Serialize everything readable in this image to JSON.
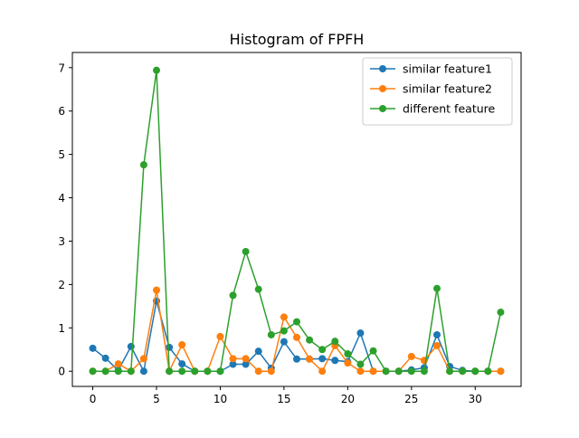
{
  "chart_data": {
    "type": "line",
    "title": "Histogram of FPFH",
    "xlabel": "",
    "ylabel": "",
    "xlim": [
      -1.6,
      33.6
    ],
    "ylim": [
      -0.35,
      7.35
    ],
    "xticks": [
      0,
      5,
      10,
      15,
      20,
      25,
      30
    ],
    "yticks": [
      0,
      1,
      2,
      3,
      4,
      5,
      6,
      7
    ],
    "x": [
      0,
      1,
      2,
      3,
      4,
      5,
      6,
      7,
      8,
      9,
      10,
      11,
      12,
      13,
      14,
      15,
      16,
      17,
      18,
      19,
      20,
      21,
      22,
      23,
      24,
      25,
      26,
      27,
      28,
      29,
      30,
      31,
      32
    ],
    "legend_position": "upper right",
    "grid": false,
    "series": [
      {
        "name": "similar feature1",
        "color": "#1f77b4",
        "values": [
          0.53,
          0.3,
          0.02,
          0.57,
          0.0,
          1.62,
          0.55,
          0.17,
          0.0,
          0.0,
          0.0,
          0.16,
          0.16,
          0.46,
          0.07,
          0.68,
          0.28,
          0.28,
          0.29,
          0.25,
          0.22,
          0.88,
          0.0,
          0.0,
          0.0,
          0.03,
          0.08,
          0.84,
          0.11,
          0.02,
          0.0,
          0.0,
          0.0
        ]
      },
      {
        "name": "similar feature2",
        "color": "#ff7f0e",
        "values": [
          0.0,
          0.0,
          0.17,
          0.0,
          0.29,
          1.87,
          0.0,
          0.61,
          0.0,
          0.0,
          0.8,
          0.29,
          0.29,
          0.0,
          0.0,
          1.25,
          0.78,
          0.28,
          0.0,
          0.59,
          0.19,
          0.0,
          0.0,
          0.0,
          0.0,
          0.34,
          0.25,
          0.59,
          0.0,
          0.0,
          0.0,
          0.0,
          0.0
        ]
      },
      {
        "name": "different feature",
        "color": "#2ca02c",
        "values": [
          0.0,
          0.0,
          0.0,
          0.0,
          4.76,
          6.94,
          0.0,
          0.0,
          0.0,
          0.0,
          0.0,
          1.75,
          2.76,
          1.89,
          0.84,
          0.93,
          1.14,
          0.72,
          0.5,
          0.69,
          0.4,
          0.16,
          0.47,
          0.0,
          0.0,
          0.0,
          0.0,
          1.91,
          0.0,
          0.0,
          0.0,
          0.0,
          1.36
        ]
      }
    ]
  }
}
